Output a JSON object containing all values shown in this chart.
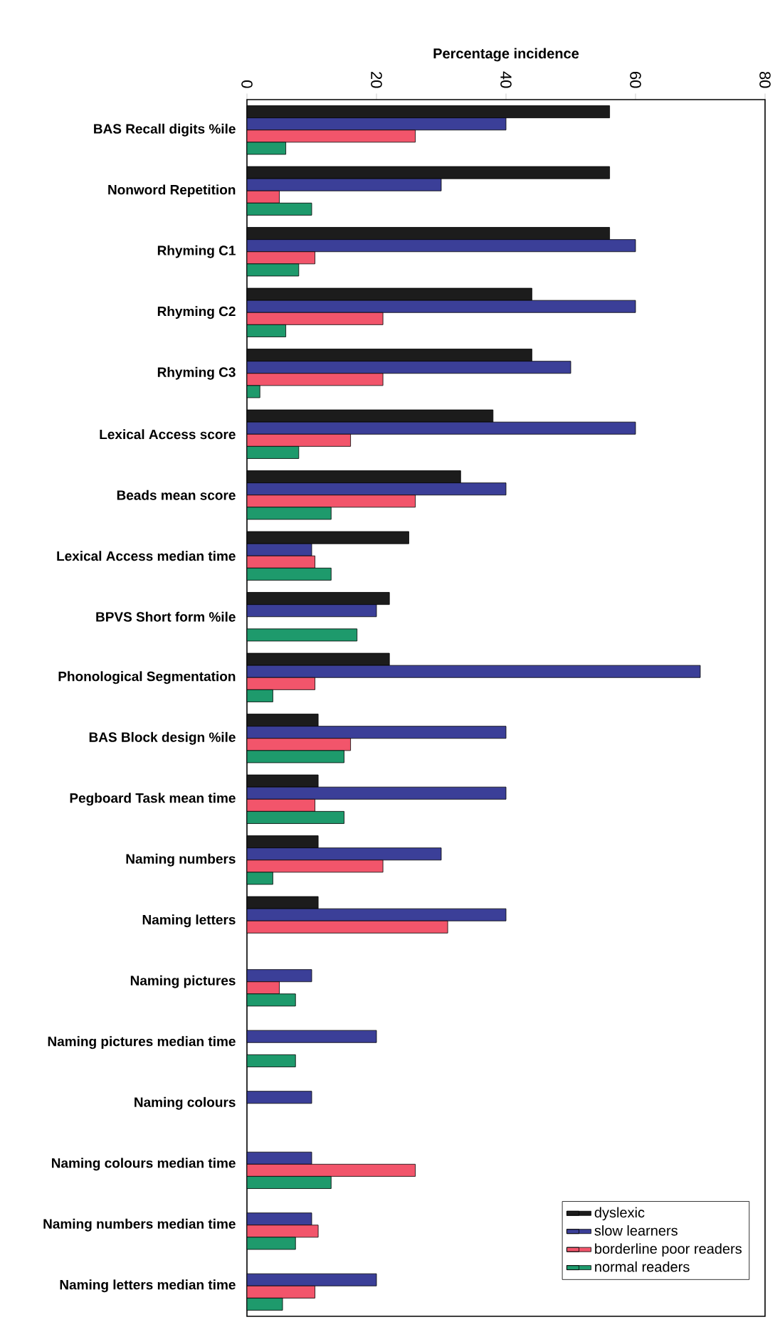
{
  "chart_data": {
    "type": "bar",
    "orientation": "horizontal",
    "xlabel": "Percentage incidence",
    "categories": [
      "BAS Recall digits %ile",
      "Nonword Repetition",
      "Rhyming C1",
      "Rhyming C2",
      "Rhyming C3",
      "Lexical Access score",
      "Beads mean score",
      "Lexical Access median time",
      "BPVS Short form %ile",
      "Phonological Segmentation",
      "BAS Block design %ile",
      "Pegboard Task mean time",
      "Naming numbers",
      "Naming letters",
      "Naming pictures",
      "Naming pictures median time",
      "Naming colours",
      "Naming colours median time",
      "Naming numbers median time",
      "Naming letters median time"
    ],
    "series": [
      {
        "name": "dyslexic",
        "color": "#1c1c1c",
        "values": [
          56,
          56,
          56,
          44,
          44,
          38,
          33,
          25,
          22,
          22,
          11,
          11,
          11,
          11,
          null,
          null,
          null,
          null,
          null,
          null
        ]
      },
      {
        "name": "slow learners",
        "color": "#3b3f98",
        "values": [
          40,
          30,
          60,
          60,
          50,
          60,
          40,
          10,
          20,
          70,
          40,
          40,
          30,
          40,
          10,
          20,
          10,
          10,
          10,
          20
        ]
      },
      {
        "name": "borderline poor readers",
        "color": "#f2556b",
        "values": [
          26,
          5,
          10.5,
          21,
          21,
          16,
          26,
          10.5,
          null,
          10.5,
          16,
          10.5,
          21,
          31,
          5,
          null,
          null,
          26,
          11,
          10.5
        ]
      },
      {
        "name": "normal readers",
        "color": "#1e9a6c",
        "values": [
          6,
          10,
          8,
          6,
          2,
          8,
          13,
          13,
          17,
          4,
          15,
          15,
          4,
          null,
          7.5,
          7.5,
          null,
          13,
          7.5,
          5.5
        ]
      }
    ],
    "xlim": [
      0,
      80
    ],
    "xticks": [
      0,
      20,
      40,
      60,
      80
    ],
    "grid": false,
    "legend": "bottom right"
  }
}
